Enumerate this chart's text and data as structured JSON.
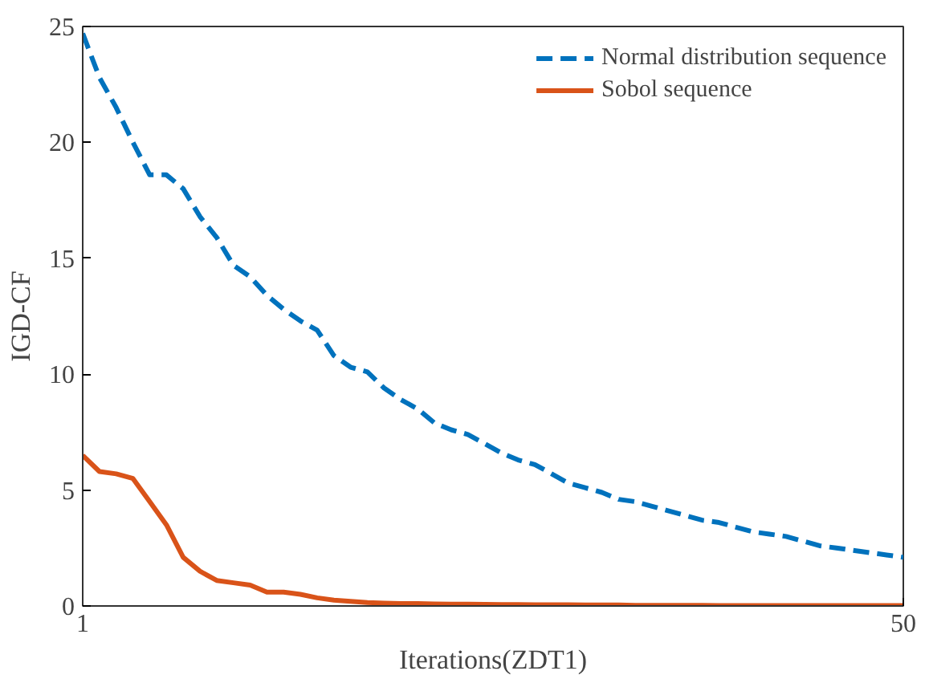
{
  "chart_data": {
    "type": "line",
    "xlabel": "Iterations(ZDT1)",
    "ylabel": "IGD-CF",
    "x": [
      1,
      2,
      3,
      4,
      5,
      6,
      7,
      8,
      9,
      10,
      11,
      12,
      13,
      14,
      15,
      16,
      17,
      18,
      19,
      20,
      21,
      22,
      23,
      24,
      25,
      26,
      27,
      28,
      29,
      30,
      31,
      32,
      33,
      34,
      35,
      36,
      37,
      38,
      39,
      40,
      41,
      42,
      43,
      44,
      45,
      46,
      47,
      48,
      49,
      50
    ],
    "series": [
      {
        "name": "Normal distribution sequence",
        "color": "#0072bd",
        "line_style": "dashed",
        "values": [
          24.7,
          22.8,
          21.5,
          20,
          18.6,
          18.6,
          18,
          16.8,
          15.9,
          14.7,
          14.2,
          13.4,
          12.8,
          12.3,
          11.9,
          10.8,
          10.3,
          10.1,
          9.4,
          8.9,
          8.5,
          7.9,
          7.6,
          7.4,
          7.0,
          6.6,
          6.3,
          6.1,
          5.7,
          5.3,
          5.1,
          4.9,
          4.6,
          4.5,
          4.3,
          4.1,
          3.9,
          3.7,
          3.6,
          3.4,
          3.2,
          3.1,
          3.0,
          2.8,
          2.6,
          2.5,
          2.4,
          2.3,
          2.2,
          2.1
        ]
      },
      {
        "name": "Sobol sequence",
        "color": "#d95319",
        "line_style": "solid",
        "values": [
          6.5,
          5.8,
          5.7,
          5.5,
          4.5,
          3.5,
          2.1,
          1.5,
          1.1,
          1.0,
          0.9,
          0.6,
          0.6,
          0.5,
          0.35,
          0.25,
          0.2,
          0.15,
          0.12,
          0.1,
          0.1,
          0.09,
          0.08,
          0.08,
          0.07,
          0.06,
          0.06,
          0.05,
          0.05,
          0.05,
          0.04,
          0.04,
          0.04,
          0.03,
          0.03,
          0.03,
          0.03,
          0.03,
          0.02,
          0.02,
          0.02,
          0.02,
          0.02,
          0.02,
          0.02,
          0.02,
          0.02,
          0.02,
          0.02,
          0.02
        ]
      }
    ],
    "xlim": [
      1,
      50
    ],
    "xticks": [
      1,
      50
    ],
    "ylim": [
      0,
      25
    ],
    "yticks": [
      0,
      5,
      10,
      15,
      20,
      25
    ],
    "grid": false,
    "legend": "top right"
  }
}
